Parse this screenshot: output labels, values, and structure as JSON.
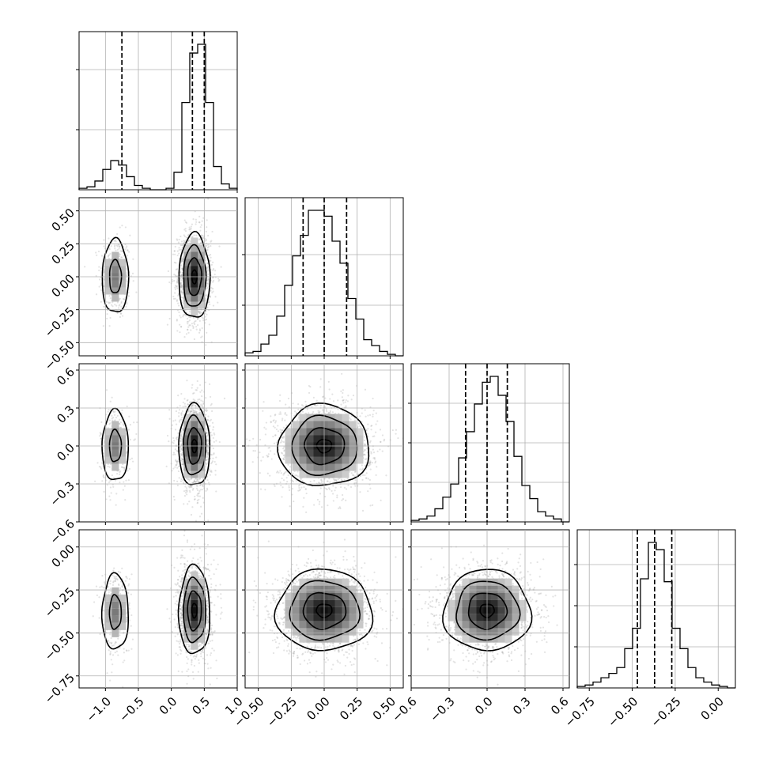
{
  "chart_data": {
    "type": "corner",
    "grid": true,
    "variables": [
      {
        "index": 0,
        "range": [
          -1.4,
          1.0
        ],
        "ticks": [
          -1.0,
          -0.5,
          0.0,
          0.5,
          1.0
        ],
        "tick_labels": [
          "−1.0",
          "−0.5",
          "0.0",
          "0.5",
          "1.0"
        ],
        "quantiles": [
          -0.75,
          0.32,
          0.5
        ]
      },
      {
        "index": 1,
        "range": [
          -0.6,
          0.6
        ],
        "ticks": [
          -0.5,
          -0.25,
          0.0,
          0.25,
          0.5
        ],
        "tick_labels": [
          "−0.50",
          "−0.25",
          "0.00",
          "0.25",
          "0.50"
        ],
        "quantiles": [
          -0.16,
          0.0,
          0.17
        ]
      },
      {
        "index": 2,
        "range": [
          -0.6,
          0.65
        ],
        "ticks": [
          -0.6,
          -0.3,
          0.0,
          0.3,
          0.6
        ],
        "tick_labels": [
          "−0.6",
          "−0.3",
          "0.0",
          "0.3",
          "0.6"
        ],
        "quantiles": [
          -0.17,
          0.0,
          0.16
        ]
      },
      {
        "index": 3,
        "range": [
          -0.82,
          0.1
        ],
        "ticks": [
          -0.75,
          -0.5,
          -0.25,
          0.0
        ],
        "tick_labels": [
          "−0.75",
          "−0.50",
          "−0.25",
          "0.00"
        ],
        "quantiles": [
          -0.47,
          -0.37,
          -0.27
        ]
      }
    ],
    "histograms": [
      {
        "var": 0,
        "counts": [
          1,
          2,
          6,
          14,
          20,
          17,
          9,
          3,
          1,
          0,
          0,
          1,
          12,
          60,
          94,
          100,
          60,
          16,
          4,
          1
        ],
        "ytick_fractions": [
          0.38,
          0.76
        ]
      },
      {
        "var": 1,
        "counts": [
          2,
          3,
          8,
          14,
          27,
          48,
          68,
          82,
          99,
          99,
          95,
          78,
          63,
          39,
          25,
          11,
          7,
          3,
          1,
          0
        ],
        "ytick_fractions": [
          0.32,
          0.64
        ]
      },
      {
        "var": 2,
        "counts": [
          1,
          2,
          4,
          9,
          17,
          26,
          44,
          62,
          81,
          96,
          100,
          87,
          69,
          45,
          25,
          16,
          7,
          4,
          2,
          0
        ],
        "ytick_fractions": [
          0.25,
          0.5,
          0.75
        ]
      },
      {
        "var": 3,
        "counts": [
          1,
          2,
          4,
          7,
          10,
          14,
          27,
          41,
          75,
          100,
          95,
          73,
          41,
          27,
          14,
          7,
          4,
          2,
          1,
          0
        ],
        "ytick_fractions": [
          0.26,
          0.52,
          0.78
        ]
      }
    ],
    "panels_2d": [
      {
        "x": 0,
        "y": 1,
        "modes": [
          {
            "cx": -0.85,
            "cy": 0.0,
            "sx": 0.1,
            "sy": 0.14,
            "w": 0.2
          },
          {
            "cx": 0.35,
            "cy": 0.0,
            "sx": 0.11,
            "sy": 0.15,
            "w": 0.8
          }
        ]
      },
      {
        "x": 0,
        "y": 2,
        "modes": [
          {
            "cx": -0.85,
            "cy": 0.0,
            "sx": 0.1,
            "sy": 0.14,
            "w": 0.2
          },
          {
            "cx": 0.35,
            "cy": 0.0,
            "sx": 0.11,
            "sy": 0.15,
            "w": 0.8
          }
        ]
      },
      {
        "x": 1,
        "y": 2,
        "modes": [
          {
            "cx": 0.0,
            "cy": 0.0,
            "sx": 0.16,
            "sy": 0.15,
            "w": 1.0
          }
        ]
      },
      {
        "x": 0,
        "y": 3,
        "modes": [
          {
            "cx": -0.85,
            "cy": -0.38,
            "sx": 0.1,
            "sy": 0.11,
            "w": 0.2
          },
          {
            "cx": 0.35,
            "cy": -0.37,
            "sx": 0.11,
            "sy": 0.12,
            "w": 0.8
          }
        ]
      },
      {
        "x": 1,
        "y": 3,
        "modes": [
          {
            "cx": 0.0,
            "cy": -0.37,
            "sx": 0.17,
            "sy": 0.11,
            "w": 1.0
          }
        ]
      },
      {
        "x": 2,
        "y": 3,
        "modes": [
          {
            "cx": 0.0,
            "cy": -0.37,
            "sx": 0.16,
            "sy": 0.11,
            "w": 1.0
          }
        ]
      }
    ]
  }
}
